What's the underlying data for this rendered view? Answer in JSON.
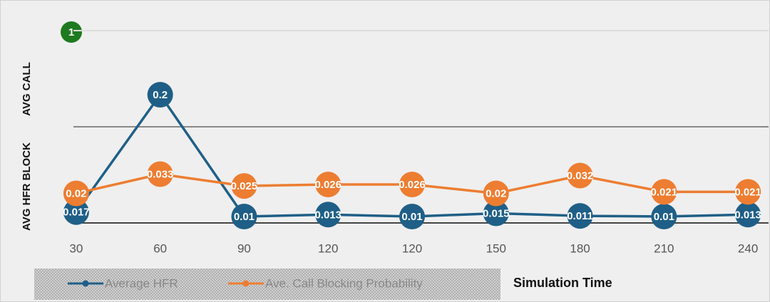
{
  "chart_data": {
    "type": "line",
    "badge": "1",
    "ylabel": "AVG HFR BLOCK",
    "y2label": "AVG CALL",
    "xlabel": "Simulation Time",
    "categories": [
      "30",
      "60",
      "90",
      "120",
      "120",
      "150",
      "180",
      "210",
      "240"
    ],
    "ylim": [
      0,
      0.3
    ],
    "yticks": [
      0,
      0.15,
      0.3
    ],
    "y2lim": [
      0,
      0.13
    ],
    "grid": true,
    "series": [
      {
        "name": "Average HFR",
        "color": "#1f5f87",
        "values": [
          0.017,
          0.2,
          0.01,
          0.013,
          0.01,
          0.015,
          0.011,
          0.01,
          0.013
        ]
      },
      {
        "name": "Ave. Call Blocking Probability",
        "color": "#ed7d31",
        "axis": "y2",
        "values": [
          0.02,
          0.033,
          0.025,
          0.026,
          0.026,
          0.02,
          0.032,
          0.021,
          0.021
        ]
      }
    ]
  }
}
